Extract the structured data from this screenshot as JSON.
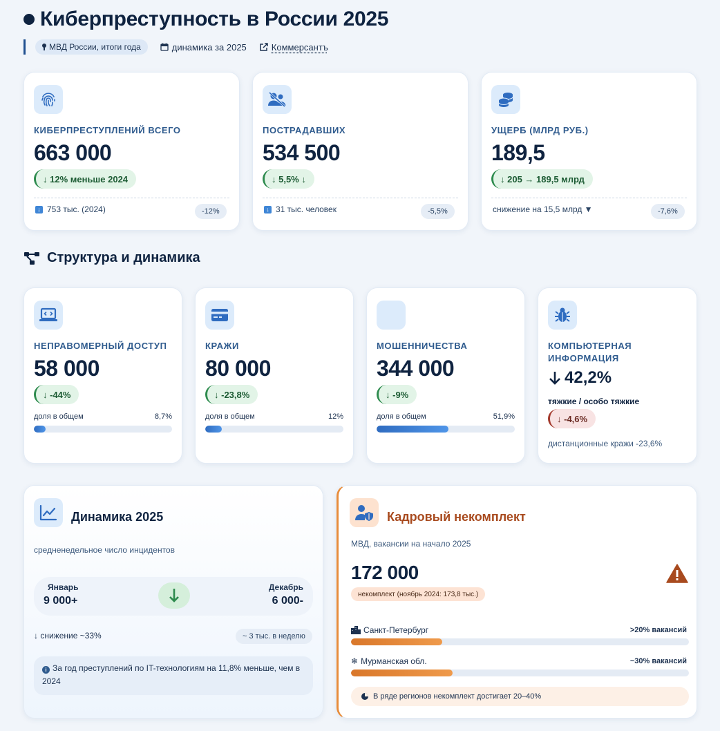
{
  "header": {
    "title": "Киберпреступность в России 2025",
    "source_pill": "МВД России, итоги года",
    "period": "динамика за 2025",
    "link": "Коммерсантъ"
  },
  "kpis": [
    {
      "icon": "fingerprint-icon",
      "label": "КИБЕРПРЕСТУПЛЕНИЙ ВСЕГО",
      "value": "663 000",
      "chip": "↓ 12% меньше 2024",
      "foot": "753 тыс. (2024)",
      "foot_pill": "-12%"
    },
    {
      "icon": "victims-icon",
      "label": "ПОСТРАДАВШИХ",
      "value": "534 500",
      "chip": "↓ 5,5% ↓",
      "foot": "31 тыс. человек",
      "foot_pill": "-5,5%"
    },
    {
      "icon": "coins-icon",
      "label": "УЩЕРБ (МЛРД РУБ.)",
      "value": "189,5",
      "chip": "↓ 205 → 189,5 млрд",
      "foot": "снижение на 15,5 млрд ▼",
      "foot_pill": "-7,6%"
    }
  ],
  "section": {
    "title": "Структура и динамика"
  },
  "structure": [
    {
      "icon": "laptop-code-icon",
      "label": "НЕПРАВОМЕРНЫЙ ДОСТУП",
      "value": "58 000",
      "chip": "↓ -44%",
      "share_label": "доля в общем",
      "share_text": "8,7%",
      "share": 8.7
    },
    {
      "icon": "credit-card-icon",
      "label": "КРАЖИ",
      "value": "80 000",
      "chip": "↓ -23,8%",
      "share_label": "доля в общем",
      "share_text": "12%",
      "share": 12
    },
    {
      "icon": "fraud-icon",
      "label": "МОШЕННИЧЕСТВА",
      "value": "344 000",
      "chip": "↓ -9%",
      "share_label": "доля в общем",
      "share_text": "51,9%",
      "share": 51.9
    }
  ],
  "computer_info": {
    "icon": "bug-icon",
    "label_line1": "КОМПЬЮТЕРНАЯ",
    "label_line2": "ИНФОРМАЦИЯ",
    "value": "42,2%",
    "sub": "тяжкие / особо тяжкие",
    "chip": "↓ -4,6%",
    "note": "дистанционные кражи -23,6%"
  },
  "dynamics": {
    "title": "Динамика 2025",
    "subtitle": "средненедельное число инцидентов",
    "start_label": "Январь",
    "start_value": "9 000+",
    "end_label": "Декабрь",
    "end_value": "6 000-",
    "decline": "↓ снижение ~33%",
    "decline_pill": "~ 3 тыс. в неделю",
    "info": "За год преступлений по IT-технологиям на 11,8% меньше, чем в 2024"
  },
  "staff": {
    "title": "Кадровый некомплект",
    "subtitle": "МВД, вакансии на начало 2025",
    "value": "172 000",
    "chip": "некомплект (ноябрь 2024: 173,8 тыс.)",
    "regions": [
      {
        "icon": "city-icon",
        "name": "Санкт-Петербург",
        "value": ">20% вакансий",
        "fill": 27
      },
      {
        "icon": "snowflake-icon",
        "name": "Мурманская обл.",
        "value": "~30% вакансий",
        "fill": 30
      }
    ],
    "note": "В ряде регионов некомплект достигает 20–40%"
  },
  "colors": {
    "accent": "#1f4f8f",
    "green": "#2e8b4e",
    "orange": "#e88c3a",
    "red": "#a3392c"
  }
}
